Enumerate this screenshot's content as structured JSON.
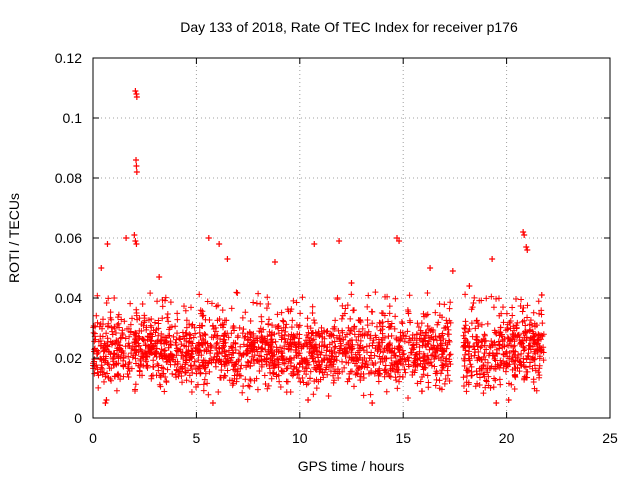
{
  "chart_data": {
    "type": "scatter",
    "title": "Day 133 of 2018, Rate Of TEC Index for receiver p176",
    "xlabel": "GPS time / hours",
    "ylabel": "ROTI / TECUs",
    "xlim": [
      0,
      25
    ],
    "ylim": [
      0,
      0.12
    ],
    "xticks": [
      "0",
      "5",
      "10",
      "15",
      "20",
      "25"
    ],
    "yticks": [
      "0",
      "0.02",
      "0.04",
      "0.06",
      "0.08",
      "0.1",
      "0.12"
    ],
    "grid": true,
    "marker": "plus",
    "series_color": "#ff0000",
    "data_coverage_hours": [
      0,
      21.8
    ],
    "data_gap_hours": [
      17.3,
      17.9
    ],
    "band_note": "dense band mostly between 0.005 and 0.04 TECU",
    "points": [
      [
        2.05,
        0.109
      ],
      [
        2.1,
        0.108
      ],
      [
        2.12,
        0.107
      ],
      [
        2.08,
        0.086
      ],
      [
        2.1,
        0.084
      ],
      [
        2.12,
        0.082
      ],
      [
        1.6,
        0.06
      ],
      [
        2.0,
        0.061
      ],
      [
        2.05,
        0.059
      ],
      [
        2.1,
        0.058
      ],
      [
        0.7,
        0.058
      ],
      [
        5.6,
        0.06
      ],
      [
        6.1,
        0.058
      ],
      [
        10.7,
        0.058
      ],
      [
        11.9,
        0.059
      ],
      [
        14.7,
        0.06
      ],
      [
        14.8,
        0.059
      ],
      [
        20.8,
        0.062
      ],
      [
        20.85,
        0.061
      ],
      [
        20.95,
        0.057
      ],
      [
        21.0,
        0.056
      ],
      [
        19.3,
        0.053
      ],
      [
        16.3,
        0.05
      ],
      [
        17.4,
        0.049
      ],
      [
        8.8,
        0.052
      ],
      [
        6.5,
        0.053
      ],
      [
        0.4,
        0.05
      ],
      [
        3.2,
        0.047
      ],
      [
        12.5,
        0.045
      ],
      [
        18.2,
        0.044
      ],
      [
        0.6,
        0.005
      ],
      [
        0.65,
        0.006
      ],
      [
        5.8,
        0.005
      ],
      [
        10.4,
        0.006
      ],
      [
        13.5,
        0.005
      ],
      [
        19.5,
        0.005
      ],
      [
        20.1,
        0.006
      ],
      [
        21.7,
        0.041
      ]
    ]
  }
}
